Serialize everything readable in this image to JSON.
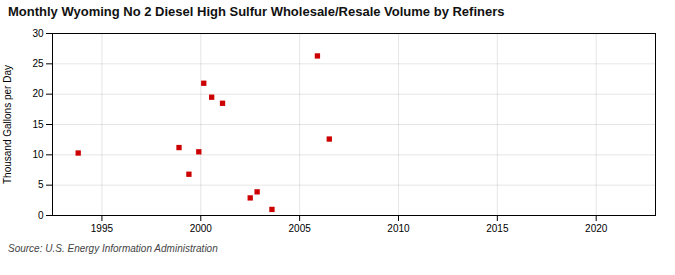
{
  "chart_data": {
    "type": "scatter",
    "title": "Monthly Wyoming No 2 Diesel High Sulfur Wholesale/Resale Volume by Refiners",
    "ylabel": "Thousand Gallons per Day",
    "annotations": [
      "Source: U.S. Energy Information Administration"
    ],
    "x": [
      1993.8,
      1998.9,
      1999.4,
      1999.9,
      2000.15,
      2000.55,
      2001.1,
      2002.5,
      2002.85,
      2003.6,
      2005.9,
      2006.5
    ],
    "values": [
      10.3,
      11.2,
      6.8,
      10.5,
      21.8,
      19.5,
      18.5,
      2.9,
      3.9,
      1.0,
      26.3,
      12.6
    ],
    "color": "#cc0000",
    "marker": "square",
    "xlim": [
      1992.5,
      2023
    ],
    "ylim": [
      0,
      30
    ],
    "xticks": [
      1995,
      2000,
      2005,
      2010,
      2015,
      2020
    ],
    "yticks": [
      0,
      5,
      10,
      15,
      20,
      25,
      30
    ],
    "grid": true
  }
}
